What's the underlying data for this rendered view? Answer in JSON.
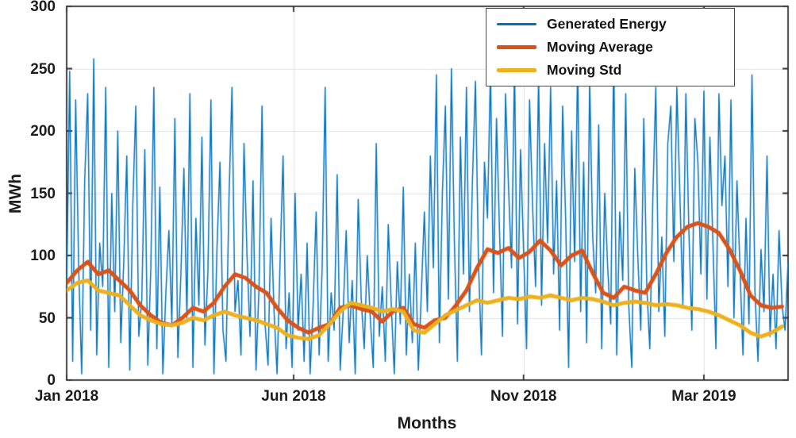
{
  "chart_data": {
    "type": "line",
    "title": "",
    "xlabel": "Months",
    "ylabel": "MWh",
    "ylim": [
      0,
      300
    ],
    "xlim": [
      0,
      480
    ],
    "yticks": [
      0,
      50,
      100,
      150,
      200,
      250,
      300
    ],
    "xticks": [
      {
        "day": 0,
        "label": "Jan 2018"
      },
      {
        "day": 151,
        "label": "Jun 2018"
      },
      {
        "day": 304,
        "label": "Nov 2018"
      },
      {
        "day": 424,
        "label": "Mar 2019"
      }
    ],
    "grid": true,
    "legend_position": "top-right",
    "series": [
      {
        "name": "Generated Energy",
        "color": "#0072BD",
        "width": 1.5,
        "x_start": 0,
        "x_step": 2,
        "values": [
          70,
          248,
          15,
          225,
          90,
          5,
          160,
          230,
          40,
          258,
          20,
          110,
          75,
          235,
          10,
          150,
          55,
          200,
          30,
          95,
          180,
          8,
          140,
          220,
          35,
          65,
          185,
          12,
          90,
          235,
          25,
          155,
          5,
          70,
          120,
          45,
          210,
          18,
          85,
          170,
          50,
          230,
          10,
          130,
          60,
          195,
          28,
          88,
          225,
          5,
          105,
          175,
          40,
          15,
          145,
          235,
          55,
          80,
          20,
          190,
          100,
          35,
          160,
          8,
          75,
          220,
          45,
          12,
          130,
          55,
          5,
          95,
          180,
          25,
          70,
          10,
          150,
          40,
          85,
          15,
          110,
          5,
          60,
          135,
          20,
          90,
          235,
          15,
          70,
          40,
          165,
          8,
          55,
          120,
          30,
          80,
          5,
          145,
          65,
          25,
          100,
          50,
          10,
          190,
          35,
          75,
          15,
          125,
          60,
          5,
          95,
          45,
          155,
          20,
          85,
          30,
          110,
          8,
          70,
          135,
          55,
          180,
          90,
          245,
          30,
          150,
          220,
          65,
          250,
          110,
          15,
          195,
          85,
          235,
          55,
          160,
          240,
          95,
          20,
          175,
          130,
          250,
          70,
          210,
          120,
          35,
          230,
          155,
          90,
          253,
          45,
          185,
          105,
          25,
          225,
          140,
          75,
          245,
          60,
          190,
          110,
          235,
          85,
          160,
          40,
          220,
          130,
          10,
          200,
          95,
          255,
          55,
          175,
          30,
          240,
          115,
          70,
          205,
          25,
          150,
          90,
          45,
          265,
          20,
          135,
          80,
          230,
          60,
          10,
          170,
          100,
          40,
          210,
          75,
          25,
          145,
          235,
          55,
          115,
          35,
          190,
          220,
          95,
          235,
          150,
          60,
          230,
          120,
          40,
          210,
          175,
          85,
          232,
          65,
          195,
          110,
          25,
          230,
          140,
          180,
          75,
          225,
          50,
          160,
          90,
          20,
          130,
          45,
          245,
          70,
          15,
          105,
          55,
          180,
          35,
          85,
          25,
          120,
          60,
          40,
          95
        ]
      },
      {
        "name": "Moving Average",
        "color": "#D95319",
        "width": 5,
        "x_start": 0,
        "x_step": 7,
        "values": [
          78,
          88,
          95,
          85,
          88,
          80,
          72,
          60,
          52,
          46,
          44,
          50,
          58,
          55,
          62,
          75,
          85,
          82,
          75,
          70,
          58,
          48,
          42,
          38,
          42,
          45,
          58,
          60,
          57,
          55,
          47,
          55,
          58,
          45,
          42,
          48,
          50,
          60,
          72,
          90,
          105,
          102,
          106,
          98,
          103,
          112,
          104,
          92,
          100,
          104,
          86,
          70,
          66,
          75,
          72,
          70,
          85,
          102,
          115,
          123,
          126,
          123,
          118,
          105,
          88,
          68,
          60,
          58,
          59
        ]
      },
      {
        "name": "Moving Std",
        "color": "#EDB120",
        "width": 5,
        "x_start": 0,
        "x_step": 7,
        "values": [
          72,
          78,
          80,
          72,
          70,
          68,
          60,
          52,
          48,
          45,
          44,
          46,
          50,
          48,
          52,
          55,
          52,
          50,
          48,
          45,
          42,
          36,
          34,
          33,
          36,
          45,
          55,
          62,
          60,
          58,
          55,
          57,
          55,
          40,
          38,
          45,
          52,
          56,
          60,
          64,
          62,
          64,
          66,
          65,
          67,
          66,
          68,
          66,
          64,
          66,
          65,
          63,
          60,
          62,
          63,
          62,
          60,
          61,
          60,
          58,
          57,
          55,
          52,
          48,
          44,
          38,
          35,
          38,
          43
        ]
      }
    ]
  }
}
